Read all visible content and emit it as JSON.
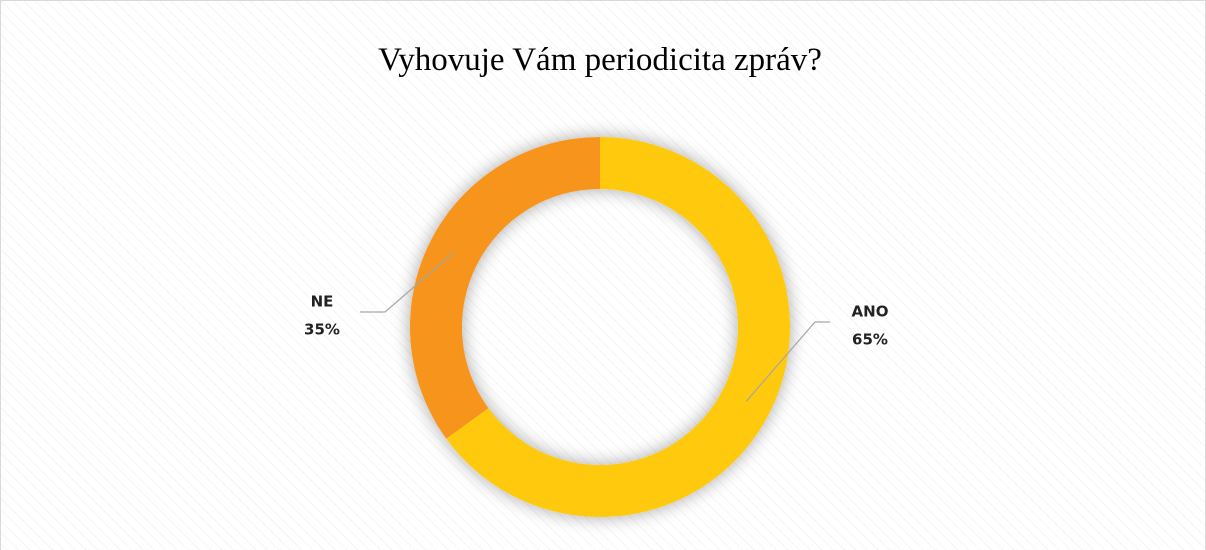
{
  "chart_data": {
    "type": "donut",
    "title": "Vyhovuje Vám periodicita zpráv?",
    "categories": [
      "ANO",
      "NE"
    ],
    "values": [
      65,
      35
    ],
    "value_labels": [
      "65%",
      "35%"
    ],
    "colors": [
      "#ffc90e",
      "#f7941d"
    ]
  }
}
